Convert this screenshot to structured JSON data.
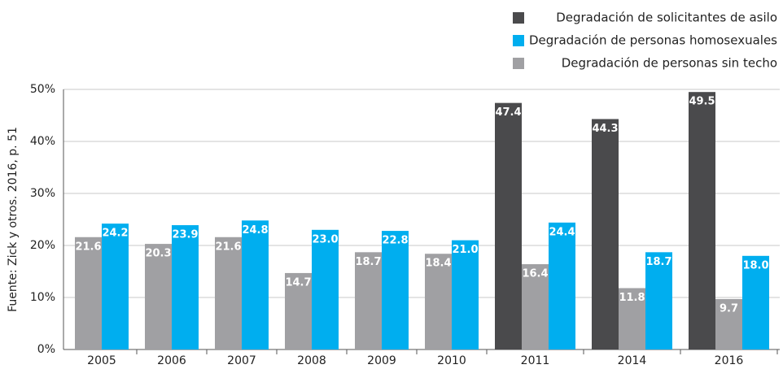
{
  "chart_data": {
    "type": "bar",
    "source": "Fuente: Zick y otros. 2016, p. 51",
    "categories": [
      "2005",
      "2006",
      "2007",
      "2008",
      "2009",
      "2010",
      "2011",
      "2014",
      "2016"
    ],
    "series": [
      {
        "name": "Degradación de solicitantes de asilo",
        "color": "#4a4a4c",
        "values": [
          null,
          null,
          null,
          null,
          null,
          null,
          47.4,
          44.3,
          49.5
        ]
      },
      {
        "name": "Degradación de personas homosexuales",
        "color": "#00aeef",
        "values": [
          24.2,
          23.9,
          24.8,
          23.0,
          22.8,
          21.0,
          24.4,
          18.7,
          18.0
        ],
        "value_labels": [
          "24.2",
          "23.9",
          "24.8",
          "23.0",
          "22.8",
          "21.0",
          "24.4",
          "18.7",
          "18.0"
        ]
      },
      {
        "name": "Degradación de personas sin techo",
        "color": "#a0a0a3",
        "values": [
          21.6,
          20.3,
          21.6,
          14.7,
          18.7,
          18.4,
          16.4,
          11.8,
          9.7
        ]
      }
    ],
    "ylim": [
      0,
      50
    ],
    "yticks": [
      {
        "value": 0,
        "label": "0%"
      },
      {
        "value": 10,
        "label": "10%"
      },
      {
        "value": 20,
        "label": "20%"
      },
      {
        "value": 30,
        "label": "30%"
      },
      {
        "value": 40,
        "label": "40%"
      },
      {
        "value": 50,
        "label": "50%"
      }
    ],
    "grid": true
  }
}
